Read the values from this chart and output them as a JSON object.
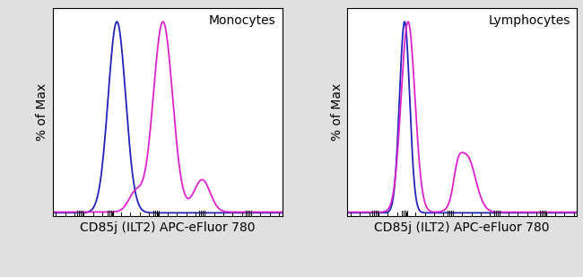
{
  "panel1_title": "Monocytes",
  "panel2_title": "Lymphocytes",
  "xlabel": "CD85j (ILT2) APC-eFluor 780",
  "ylabel": "% of Max",
  "blue_color": "#2222bb",
  "magenta_color": "#dd22cc",
  "background_color": "#e0e0e0",
  "plot_bg_color": "#ffffff",
  "title_fontsize": 10,
  "label_fontsize": 10
}
